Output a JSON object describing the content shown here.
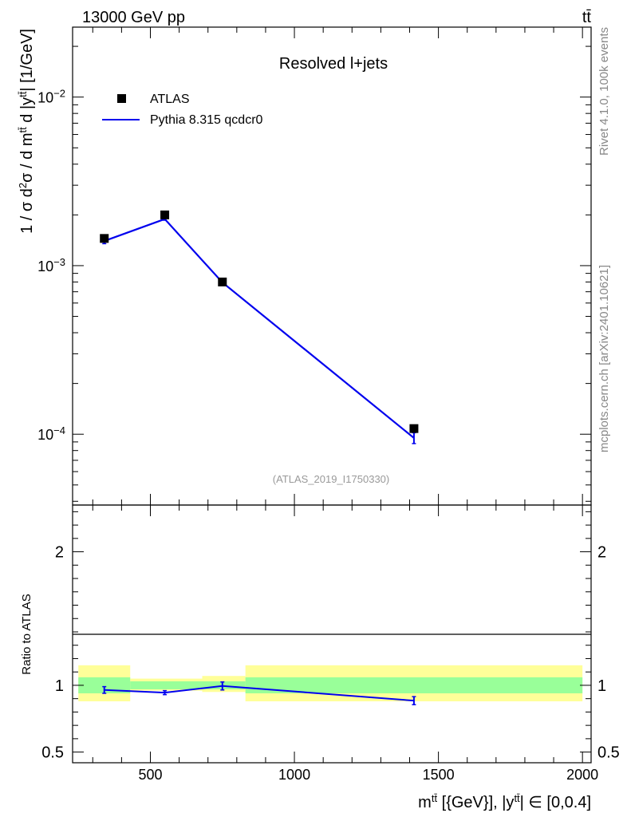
{
  "header": {
    "energy_label": "13000 GeV pp",
    "process_label": "tt̄"
  },
  "side_labels": {
    "rivet": "Rivet 4.1.0,  100k events",
    "mcplots": "mcplots.cern.ch [arXiv:2401.10621]"
  },
  "chart_data": [
    {
      "type": "line",
      "panel": "main",
      "title": "Resolved l+jets",
      "analysis_tag": "(ATLAS_2019_I1750330)",
      "ylabel": "1 / σ d²σ / d m^{tt̄} d |y^{tt̄}| [1/GeV]",
      "yscale": "log",
      "ylim": [
        3.8e-05,
        0.026
      ],
      "xlim": [
        230,
        2030
      ],
      "x_ticks": [
        500,
        1000,
        1500,
        2000
      ],
      "y_ticks": [
        0.0001,
        0.001,
        0.01
      ],
      "y_tick_labels": [
        {
          "base": "10",
          "exp": "−4"
        },
        {
          "base": "10",
          "exp": "−3"
        },
        {
          "base": "10",
          "exp": "−2"
        }
      ],
      "legend": {
        "position": "top-left",
        "entries": [
          {
            "label": "ATLAS",
            "marker": "square",
            "color": "#000000"
          },
          {
            "label": "Pythia 8.315 qcdcr0",
            "marker": "line",
            "color": "#0000ee"
          }
        ]
      },
      "series": [
        {
          "name": "ATLAS",
          "style": "markers",
          "color": "#000000",
          "x": [
            340,
            550,
            750,
            1415
          ],
          "y": [
            0.00145,
            0.002,
            0.0008,
            0.000108
          ]
        },
        {
          "name": "Pythia 8.315 qcdcr0",
          "style": "line",
          "color": "#0000ee",
          "x": [
            340,
            550,
            750,
            1415
          ],
          "y": [
            0.0014,
            0.00189,
            0.000795,
            9.5e-05
          ],
          "yerr": [
            5e-05,
            3e-05,
            2.5e-05,
            7e-06
          ]
        }
      ]
    },
    {
      "type": "line",
      "panel": "ratio",
      "ylabel": "Ratio to ATLAS",
      "xlabel_main": "m^{tt̄} [{GeV}], |y^{tt̄}| ∈ [0,0.4]",
      "ylim": [
        0.42,
        2.35
      ],
      "xlim": [
        230,
        2030
      ],
      "x_ticks": [
        500,
        1000,
        1500,
        2000
      ],
      "y_ticks": [
        0.5,
        1,
        2
      ],
      "bins": [
        {
          "x0": 250,
          "x1": 430,
          "green": [
            0.94,
            1.06
          ],
          "yellow": [
            0.88,
            1.15
          ]
        },
        {
          "x0": 430,
          "x1": 680,
          "green": [
            0.97,
            1.03
          ],
          "yellow": [
            0.96,
            1.05
          ]
        },
        {
          "x0": 680,
          "x1": 830,
          "green": [
            0.97,
            1.03
          ],
          "yellow": [
            0.95,
            1.07
          ]
        },
        {
          "x0": 830,
          "x1": 2000,
          "green": [
            0.94,
            1.06
          ],
          "yellow": [
            0.88,
            1.15
          ]
        }
      ],
      "series": [
        {
          "name": "Pythia 8.315 qcdcr0",
          "color": "#0000ee",
          "x": [
            340,
            550,
            750,
            1415
          ],
          "y": [
            0.965,
            0.945,
            0.995,
            0.885
          ],
          "yerr": [
            0.025,
            0.015,
            0.03,
            0.03
          ]
        }
      ]
    }
  ]
}
